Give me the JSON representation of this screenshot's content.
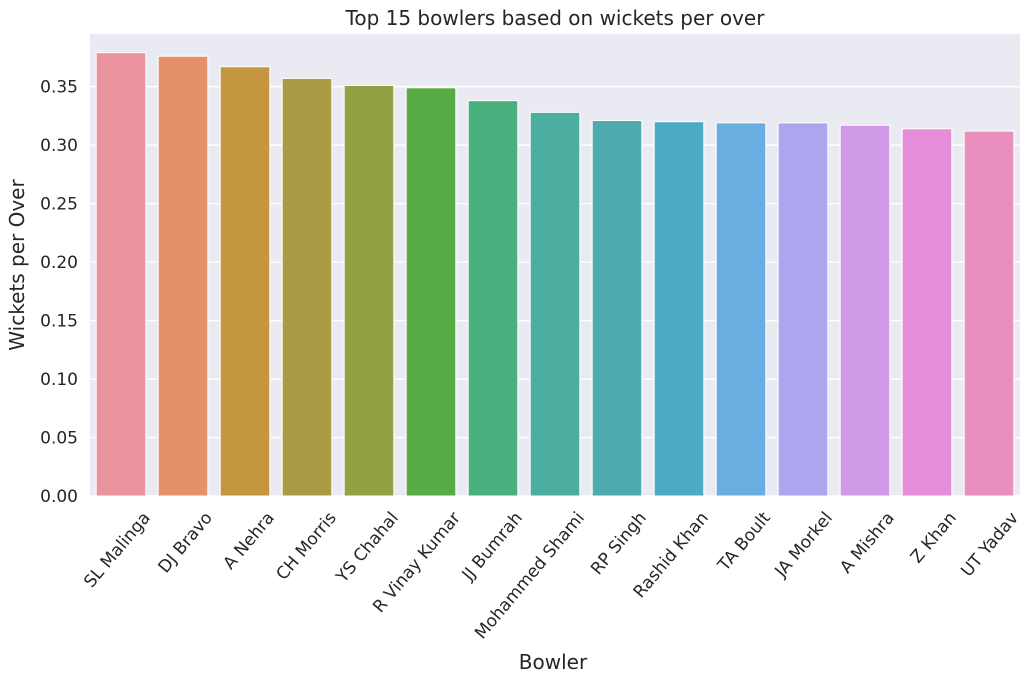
{
  "chart_data": {
    "type": "bar",
    "title": "Top 15 bowlers based on wickets per over",
    "xlabel": "Bowler",
    "ylabel": "Wickets per Over",
    "ylim": [
      0,
      0.395
    ],
    "yticks": [
      "0.00",
      "0.05",
      "0.10",
      "0.15",
      "0.20",
      "0.25",
      "0.30",
      "0.35"
    ],
    "grid": true,
    "background": "#EAEAF2",
    "categories": [
      "SL Malinga",
      "DJ Bravo",
      "A Nehra",
      "CH Morris",
      "YS Chahal",
      "R Vinay Kumar",
      "JJ Bumrah",
      "Mohammed Shami",
      "RP Singh",
      "Rashid Khan",
      "TA Boult",
      "JA Morkel",
      "A Mishra",
      "Z Khan",
      "UT Yadav"
    ],
    "values": [
      0.379,
      0.376,
      0.367,
      0.357,
      0.351,
      0.349,
      0.338,
      0.328,
      0.321,
      0.32,
      0.319,
      0.319,
      0.317,
      0.314,
      0.312
    ],
    "colors": [
      "#E8939E",
      "#E69069",
      "#C4963F",
      "#A99C44",
      "#90A243",
      "#57AC45",
      "#48AF7E",
      "#4CAEA1",
      "#4DABAF",
      "#4DAAC6",
      "#6AADE1",
      "#ABA6EE",
      "#D19AE8",
      "#E68DDA",
      "#E98FBE"
    ]
  }
}
